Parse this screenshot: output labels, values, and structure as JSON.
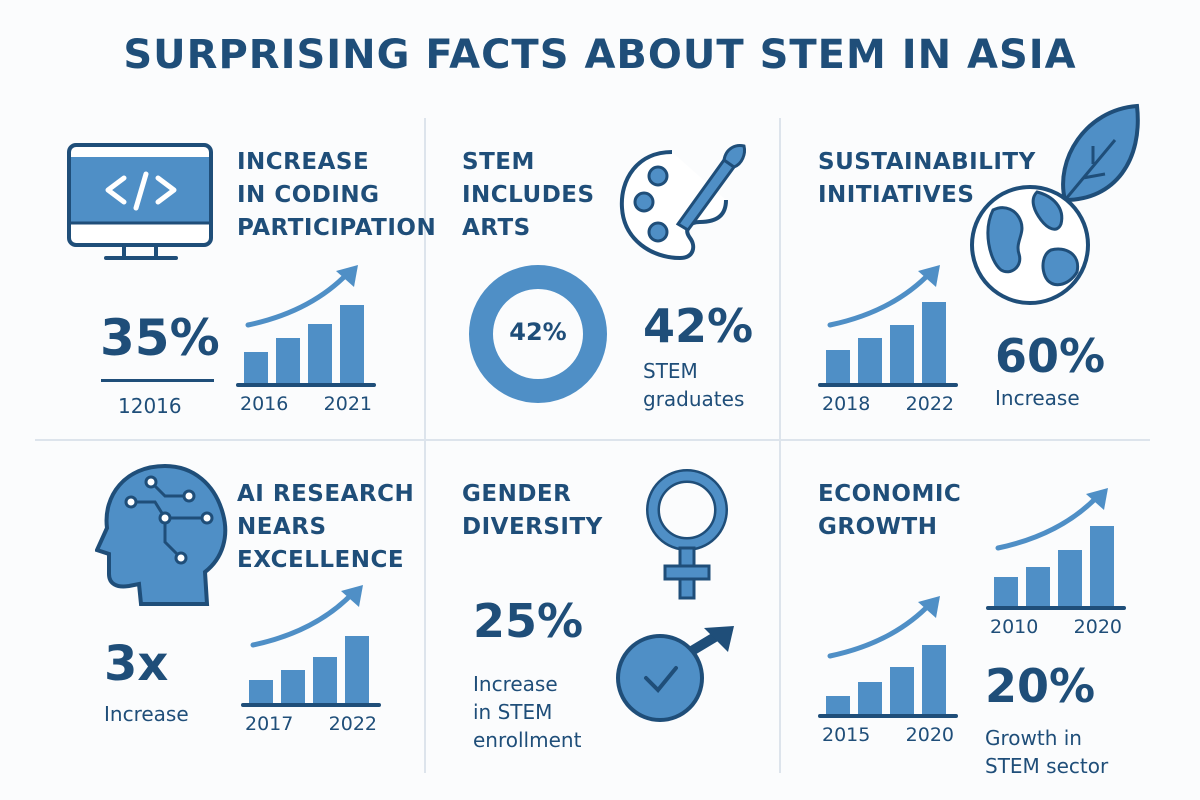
{
  "title": "SURPRISING FACTS ABOUT STEM IN ASIA",
  "colors": {
    "navy": "#1f4e79",
    "blue": "#4f8fc6",
    "divider": "#dde4ec"
  },
  "cells": {
    "coding": {
      "heading": [
        "INCREASE",
        "IN CODING",
        "PARTICIPATION"
      ],
      "stat": "35%",
      "stat_caption": "12016",
      "icon": "monitor-code-icon",
      "chart": {
        "bars": [
          33,
          47,
          61,
          80
        ],
        "years": [
          "2016",
          "2021"
        ]
      }
    },
    "arts": {
      "heading": [
        "STEM",
        "INCLUDES",
        "ARTS"
      ],
      "donut_label": "42%",
      "donut_fraction": 0.42,
      "stat": "42%",
      "stat_caption": [
        "STEM",
        "graduates"
      ],
      "icon": "palette-brush-icon"
    },
    "sustainability": {
      "heading": [
        "SUSTAINABILITY",
        "INITIATIVES"
      ],
      "stat": "60%",
      "stat_caption": "Increase",
      "icon": "globe-leaf-icon",
      "chart": {
        "bars": [
          35,
          47,
          60,
          83
        ],
        "years": [
          "2018",
          "2022"
        ]
      }
    },
    "ai": {
      "heading": [
        "AI RESEARCH",
        "NEARS",
        "EXCELLENCE"
      ],
      "stat": "3x",
      "stat_caption": "Increase",
      "icon": "ai-head-circuit-icon",
      "chart": {
        "bars": [
          25,
          35,
          48,
          69
        ],
        "years": [
          "2017",
          "2022"
        ]
      }
    },
    "gender": {
      "heading": [
        "GENDER",
        "DIVERSITY"
      ],
      "stat": "25%",
      "stat_caption": [
        "Increase",
        "in STEM",
        "enrollment"
      ],
      "icons": [
        "female-symbol-icon",
        "male-check-icon"
      ]
    },
    "economic": {
      "heading": [
        "ECONOMIC",
        "GROWTH"
      ],
      "stat": "20%",
      "stat_caption": [
        "Growth in",
        "STEM sector"
      ],
      "chart_top": {
        "bars": [
          31,
          41,
          58,
          82
        ],
        "years": [
          "2010",
          "2020"
        ]
      },
      "chart_bottom": {
        "bars": [
          20,
          34,
          49,
          71
        ],
        "years": [
          "2015",
          "2020"
        ]
      }
    }
  }
}
